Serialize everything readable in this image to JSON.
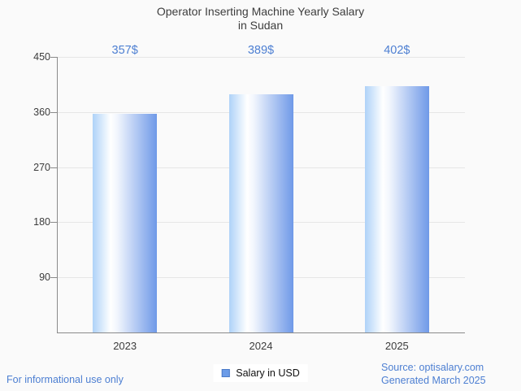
{
  "title": {
    "line1": "Operator Inserting Machine Yearly Salary",
    "line2": "in Sudan"
  },
  "chart_data": {
    "type": "bar",
    "title": "Operator Inserting Machine Yearly Salary in Sudan",
    "categories": [
      "2023",
      "2024",
      "2025"
    ],
    "values": [
      357,
      389,
      402
    ],
    "value_labels": [
      "357$",
      "389$",
      "402$"
    ],
    "series_name": "Salary in USD",
    "xlabel": "",
    "ylabel": "",
    "ylim": [
      0,
      450
    ],
    "yticks": [
      90,
      180,
      270,
      360,
      450
    ],
    "grid": "horizontal",
    "legend_position": "bottom-center",
    "colors": {
      "bar_gradient_left": "#aed2f8",
      "bar_gradient_mid": "#ffffff",
      "bar_gradient_right": "#6f99e8",
      "value_label": "#4d7fd2",
      "axis": "#8a8a8a",
      "gridline": "#e6e6e6",
      "background": "#fafafa"
    }
  },
  "legend": {
    "label": "Salary in USD",
    "swatch_fill": "#6c9ce8",
    "swatch_border": "#4a7ac8"
  },
  "footer": {
    "left": "For informational use only",
    "source": "Source: optisalary.com",
    "generated": "Generated March 2025",
    "text_color": "#4d7fd2"
  }
}
